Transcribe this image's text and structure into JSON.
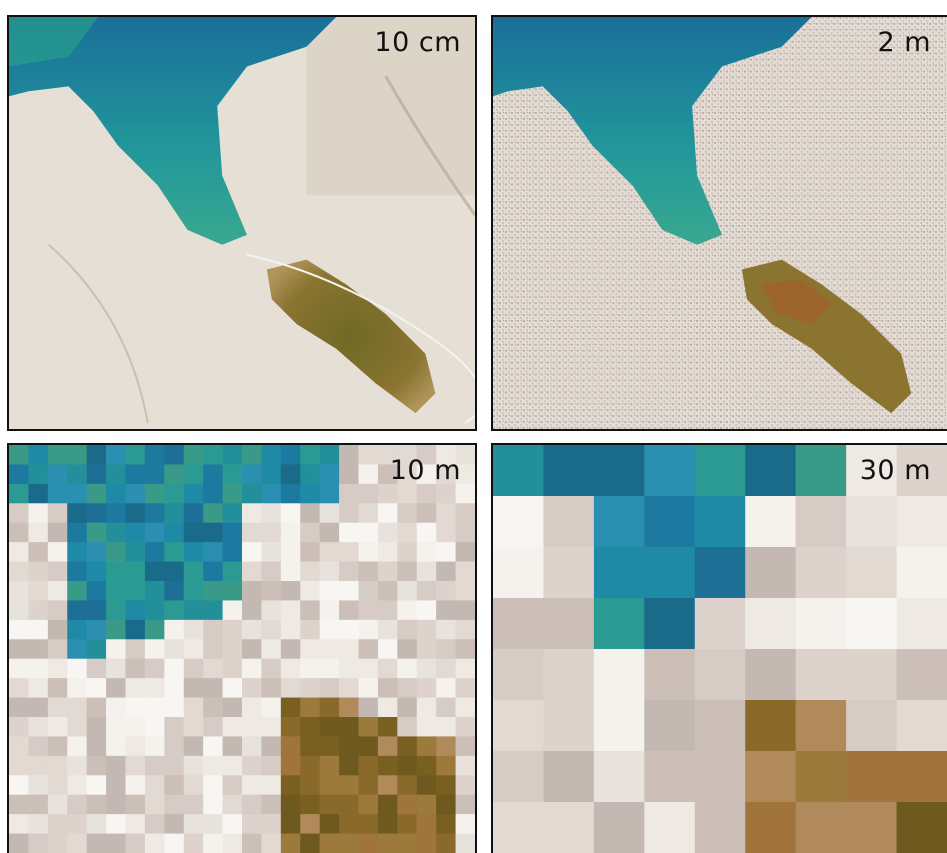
{
  "panels": [
    {
      "label": "10 cm",
      "image": "aerial-photo-full-resolution"
    },
    {
      "label": "2 m",
      "image": "aerial-photo-speckled"
    },
    {
      "label": "10 m",
      "image": "aerial-photo-pixelated-fine"
    },
    {
      "label": "30 m",
      "image": "aerial-photo-pixelated-coarse"
    }
  ],
  "colors": {
    "water": "#1f8f9a",
    "water_deep": "#1a6f9a",
    "land": "#e9e2da",
    "vegetation": "#8a6a2a",
    "border": "#111111"
  }
}
